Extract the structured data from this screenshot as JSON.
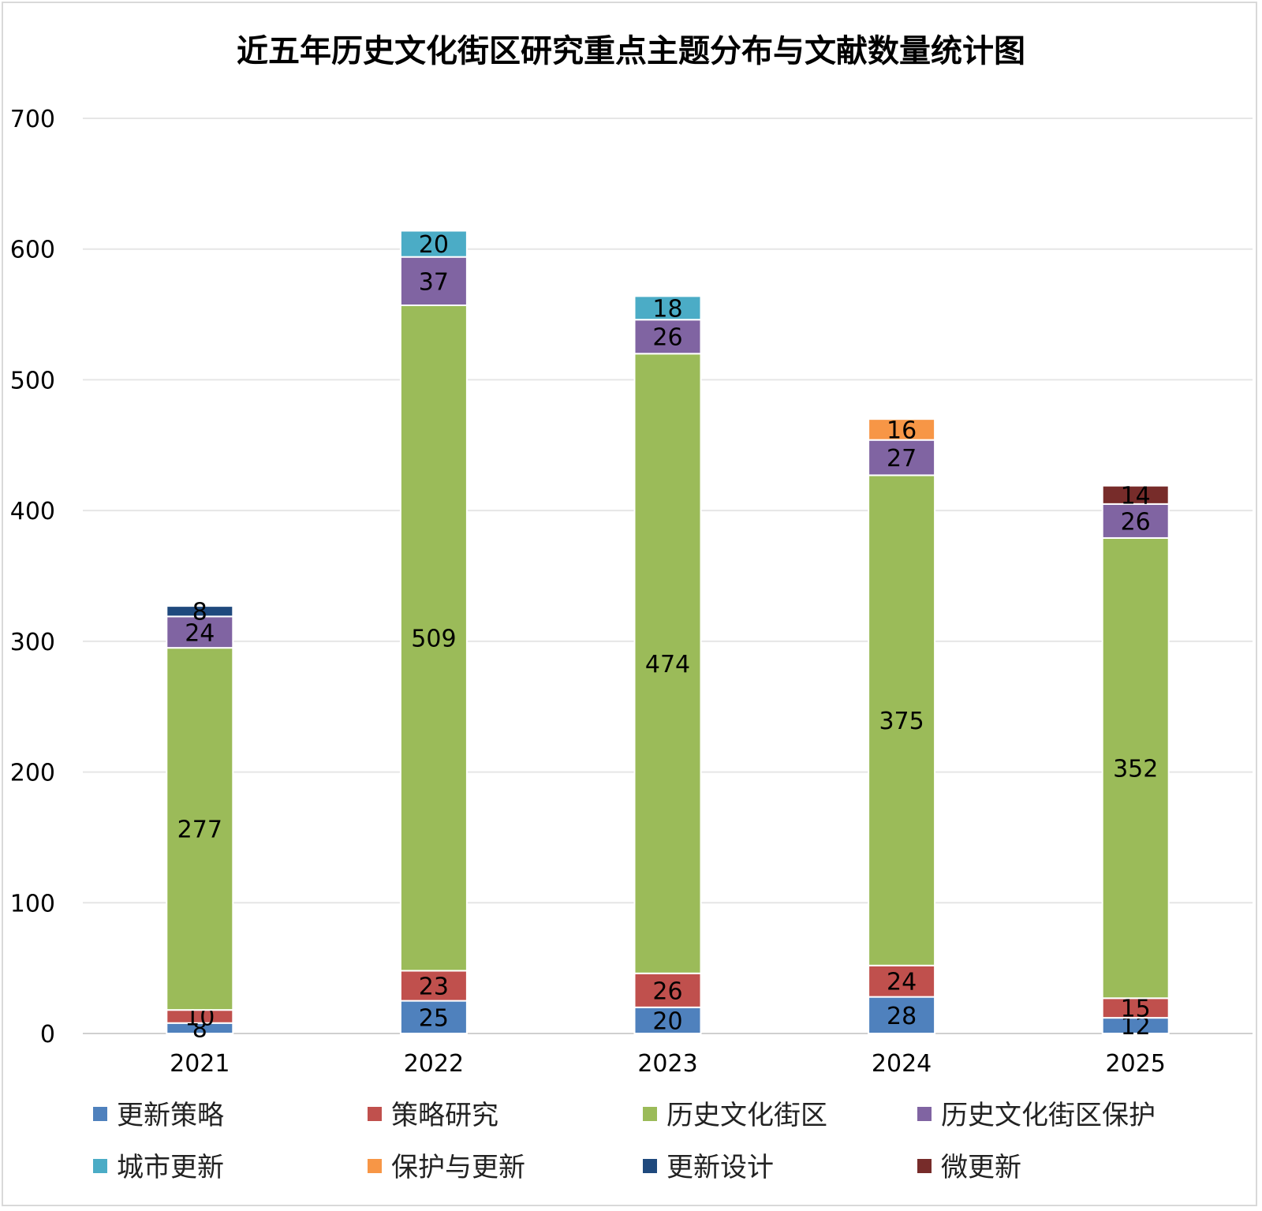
{
  "chart_data": {
    "type": "bar",
    "stacked": true,
    "title": "近五年历史文化街区研究重点主题分布与文献数量统计图",
    "categories": [
      "2021",
      "2022",
      "2023",
      "2024",
      "2025"
    ],
    "ylim": [
      0,
      700
    ],
    "yticks": [
      0,
      100,
      200,
      300,
      400,
      500,
      600,
      700
    ],
    "grid": true,
    "legend_position": "bottom",
    "series": [
      {
        "name": "更新策略",
        "color": "#4F81BD",
        "values": [
          8,
          25,
          20,
          28,
          12
        ]
      },
      {
        "name": "策略研究",
        "color": "#C0504D",
        "values": [
          10,
          23,
          26,
          24,
          15
        ]
      },
      {
        "name": "历史文化街区",
        "color": "#9BBB59",
        "values": [
          277,
          509,
          474,
          375,
          352
        ]
      },
      {
        "name": "历史文化街区保护",
        "color": "#8064A2",
        "values": [
          24,
          37,
          26,
          27,
          26
        ]
      },
      {
        "name": "城市更新",
        "color": "#4BACC6",
        "values": [
          null,
          20,
          18,
          null,
          null
        ]
      },
      {
        "name": "保护与更新",
        "color": "#F79646",
        "values": [
          null,
          null,
          null,
          16,
          null
        ]
      },
      {
        "name": "更新设计",
        "color": "#1F497D",
        "values": [
          8,
          null,
          null,
          null,
          null
        ]
      },
      {
        "name": "微更新",
        "color": "#772C2A",
        "values": [
          null,
          null,
          null,
          null,
          14
        ]
      }
    ]
  }
}
